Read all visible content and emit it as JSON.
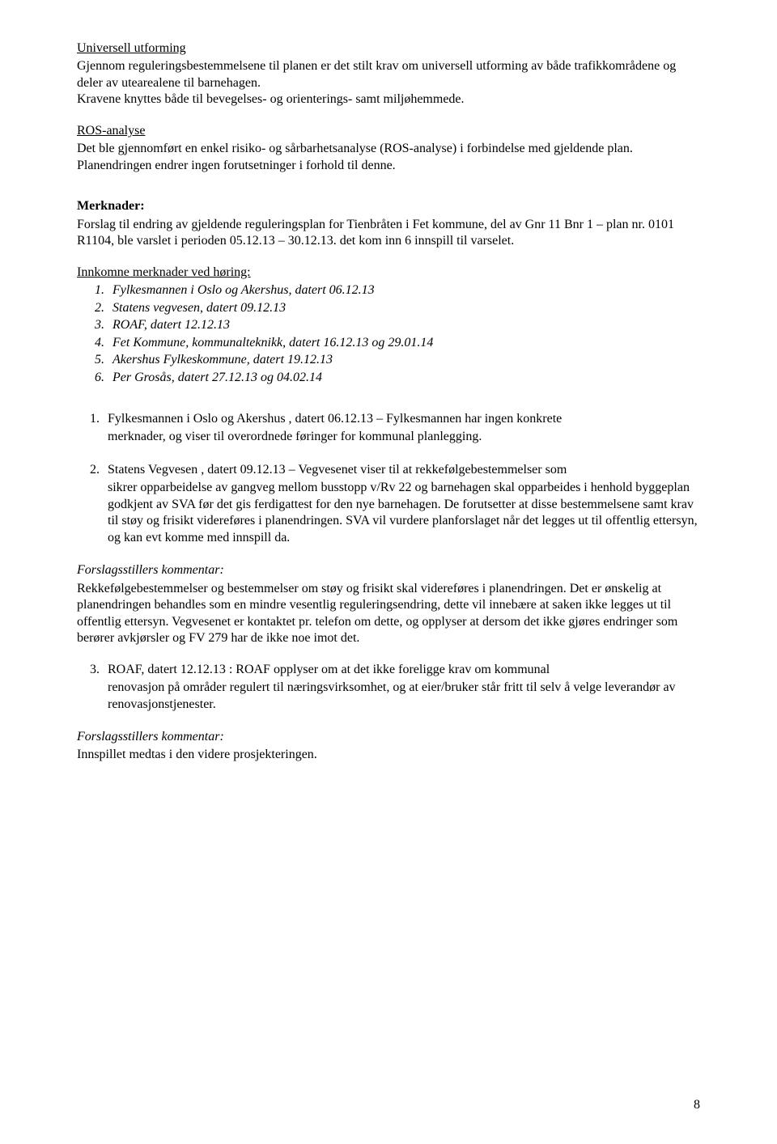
{
  "s1": {
    "heading": "Universell utforming",
    "p1": "Gjennom reguleringsbestemmelsene til planen er det stilt krav om universell utforming av både trafikkområdene og deler av utearealene til barnehagen.",
    "p2": "Kravene knyttes både til bevegelses- og orienterings- samt miljøhemmede."
  },
  "s2": {
    "heading": "ROS-analyse",
    "p1": "Det ble gjennomført en enkel risiko- og sårbarhetsanalyse (ROS-analyse) i forbindelse med gjeldende plan. Planendringen endrer ingen forutsetninger i forhold til denne."
  },
  "merknader": {
    "heading": "Merknader:",
    "p1": "Forslag til endring av gjeldende reguleringsplan for Tienbråten i Fet kommune, del av Gnr 11 Bnr 1 – plan nr. 0101 R1104, ble varslet i perioden 05.12.13 – 30.12.13. det kom inn 6 innspill til varselet."
  },
  "innkomne": {
    "heading": "Innkomne merknader ved høring:",
    "items": [
      "Fylkesmannen i Oslo og Akershus, datert 06.12.13",
      "Statens vegvesen, datert 09.12.13",
      "ROAF, datert 12.12.13",
      "Fet Kommune, kommunalteknikk, datert 16.12.13 og 29.01.14",
      "Akershus Fylkeskommune, datert 19.12.13",
      "Per Grosås, datert 27.12.13 og 04.02.14"
    ]
  },
  "item1": {
    "num": "1.",
    "lead": "Fylkesmannen i Oslo og Akershus , datert 06.12.13 – Fylkesmannen har ingen konkrete",
    "cont": "merknader, og viser til overordnede føringer for kommunal planlegging."
  },
  "item2": {
    "num": "2.",
    "lead": "Statens Vegvesen , datert 09.12.13 – Vegvesenet viser til at rekkefølgebestemmelser som",
    "cont": "sikrer opparbeidelse av gangveg mellom busstopp v/Rv 22 og barnehagen skal opparbeides i henhold byggeplan godkjent av SVA før det gis ferdigattest for den nye barnehagen. De forutsetter at disse bestemmelsene samt krav til støy og frisikt videreføres i planendringen. SVA vil vurdere planforslaget når det legges ut til offentlig ettersyn, og kan evt komme med innspill da."
  },
  "fk1": {
    "heading": "Forslagsstillers kommentar:",
    "body": "Rekkefølgebestemmelser og bestemmelser om støy og frisikt skal videreføres i planendringen. Det er ønskelig at planendringen behandles som en mindre vesentlig reguleringsendring, dette vil innebære at saken ikke legges ut til offentlig ettersyn. Vegvesenet er kontaktet pr. telefon om dette, og opplyser at dersom det ikke gjøres endringer som berører avkjørsler og FV 279 har de ikke noe imot det."
  },
  "item3": {
    "num": "3.",
    "lead": "ROAF, datert 12.12.13 : ROAF opplyser om at det ikke foreligge krav om kommunal",
    "cont": "renovasjon på områder regulert til næringsvirksomhet, og at eier/bruker står fritt til selv å velge leverandør av renovasjonstjenester."
  },
  "fk2": {
    "heading": "Forslagsstillers kommentar:",
    "body": "Innspillet medtas i den videre prosjekteringen."
  },
  "pagenum": "8"
}
